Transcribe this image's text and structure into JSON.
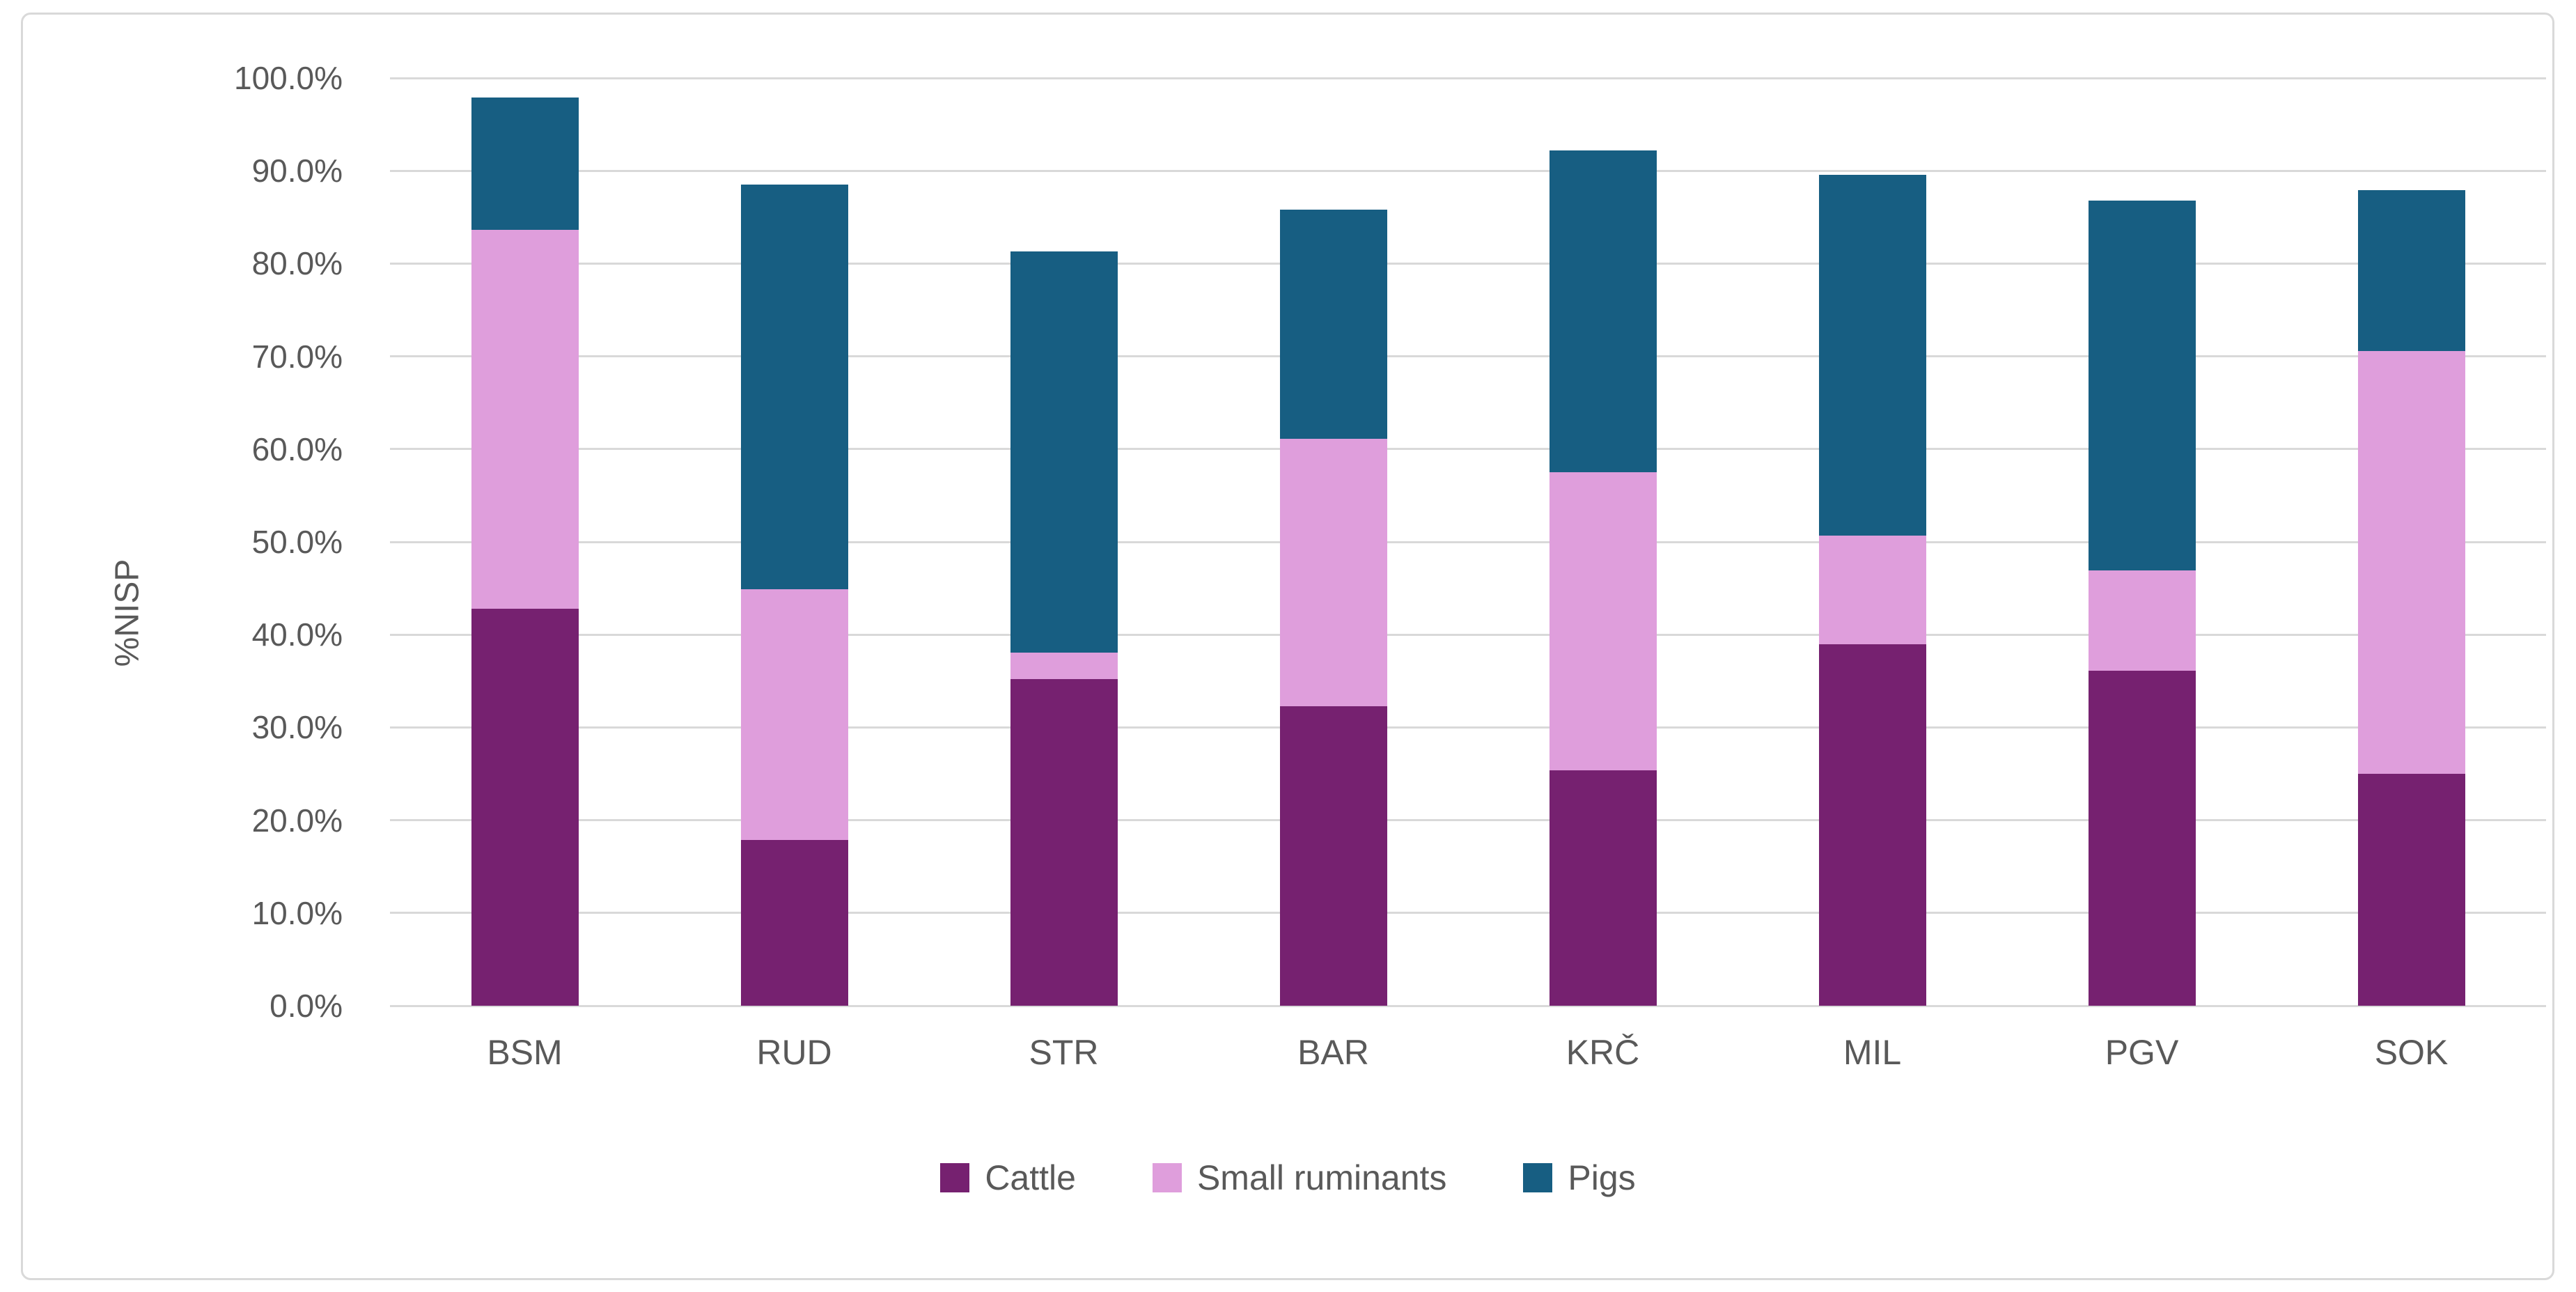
{
  "chart_data": {
    "type": "bar",
    "stacked": true,
    "title": "",
    "xlabel": "",
    "ylabel": "%NISP",
    "ylim": [
      0,
      100
    ],
    "grid": true,
    "legend_position": "bottom",
    "categories": [
      "BSM",
      "RUD",
      "STR",
      "BAR",
      "KRČ",
      "MIL",
      "PGV",
      "SOK"
    ],
    "series": [
      {
        "name": "Cattle",
        "color": "#762170",
        "values": [
          42.8,
          17.9,
          35.2,
          32.3,
          25.4,
          39.0,
          36.1,
          25.0
        ]
      },
      {
        "name": "Small ruminants",
        "color": "#DF9EDC",
        "values": [
          40.8,
          27.0,
          2.9,
          28.8,
          32.1,
          11.7,
          10.8,
          45.6
        ]
      },
      {
        "name": "Pigs",
        "color": "#175E82",
        "values": [
          14.3,
          43.6,
          43.2,
          24.7,
          34.7,
          38.9,
          39.9,
          17.3
        ]
      }
    ],
    "stack_totals": [
      97.9,
      88.5,
      81.3,
      85.8,
      92.2,
      89.6,
      86.8,
      87.9
    ],
    "y_ticks": [
      "0.0%",
      "10.0%",
      "20.0%",
      "30.0%",
      "40.0%",
      "50.0%",
      "60.0%",
      "70.0%",
      "80.0%",
      "90.0%",
      "100.0%"
    ]
  },
  "styles": {
    "grid_color": "#D9D9D9",
    "frame_border_color": "#D9D9D9",
    "axis_text_color": "#595959",
    "background_color": "#FFFFFF"
  }
}
